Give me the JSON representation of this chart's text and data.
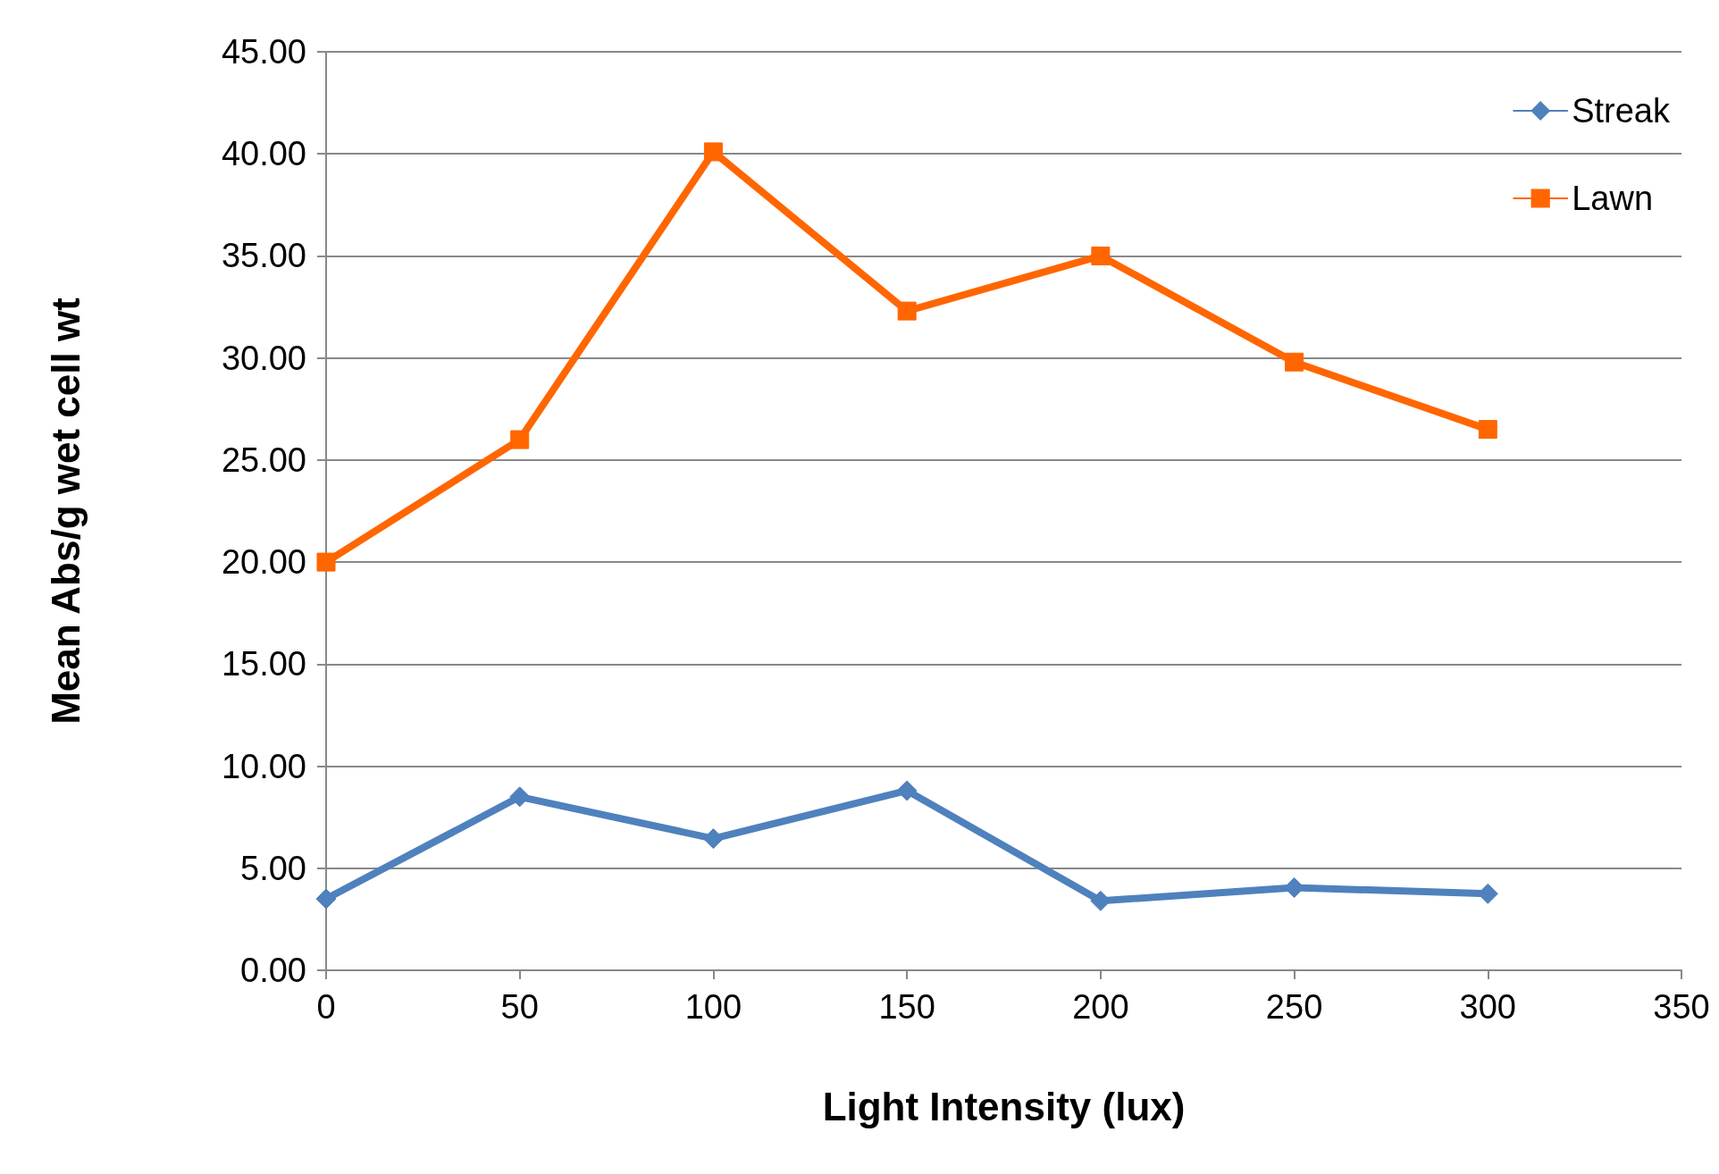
{
  "chart_data": {
    "type": "line",
    "xlabel": "Light Intensity (lux)",
    "ylabel": "Mean Abs/g wet cell wt",
    "x": [
      0,
      50,
      100,
      150,
      200,
      250,
      300
    ],
    "series": [
      {
        "name": "Streak",
        "color": "#4f81bd",
        "marker": "diamond",
        "values": [
          3.5,
          8.5,
          6.45,
          8.8,
          3.4,
          4.05,
          3.75
        ]
      },
      {
        "name": "Lawn",
        "color": "#ff6600",
        "marker": "square",
        "values": [
          20.0,
          26.0,
          40.1,
          32.3,
          35.0,
          29.8,
          26.5
        ]
      }
    ],
    "xlim": [
      0,
      350
    ],
    "xticks": [
      0,
      50,
      100,
      150,
      200,
      250,
      300,
      350
    ],
    "ylim": [
      0,
      45
    ],
    "yticks": [
      {
        "value": 0,
        "label": "0.00"
      },
      {
        "value": 5,
        "label": "5.00"
      },
      {
        "value": 10,
        "label": "10.00"
      },
      {
        "value": 15,
        "label": "15.00"
      },
      {
        "value": 20,
        "label": "20.00"
      },
      {
        "value": 25,
        "label": "25.00"
      },
      {
        "value": 30,
        "label": "30.00"
      },
      {
        "value": 35,
        "label": "35.00"
      },
      {
        "value": 40,
        "label": "40.00"
      },
      {
        "value": 45,
        "label": "45.00"
      }
    ],
    "grid": "y",
    "legend": "top right",
    "line_style": "solid"
  }
}
